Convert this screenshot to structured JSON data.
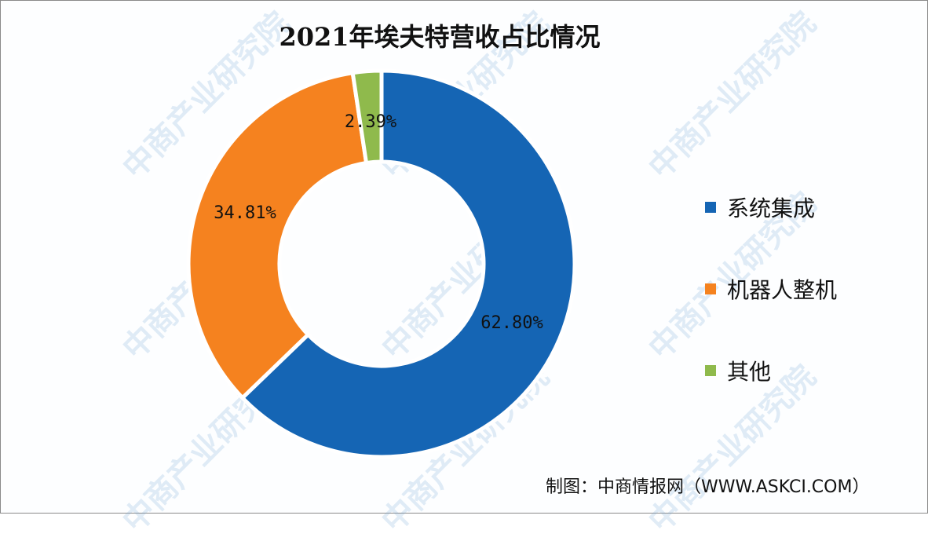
{
  "title": "2021年埃夫特营收占比情况",
  "source": "制图：中商情报网（WWW.ASKCI.COM）",
  "watermark": "中商产业研究院",
  "chart_data": {
    "type": "pie",
    "subtype": "donut",
    "title": "2021年埃夫特营收占比情况",
    "categories": [
      "系统集成",
      "机器人整机",
      "其他"
    ],
    "values": [
      62.8,
      34.81,
      2.39
    ],
    "unit": "%",
    "labels": [
      "62.80%",
      "34.81%",
      "2.39%"
    ],
    "colors": [
      "#1565b4",
      "#f5821f",
      "#8fba4c"
    ],
    "legend_position": "right",
    "start_angle": "12 o'clock, clockwise"
  },
  "legend": [
    {
      "label": "系统集成",
      "color": "#1565b4"
    },
    {
      "label": "机器人整机",
      "color": "#f5821f"
    },
    {
      "label": "其他",
      "color": "#8fba4c"
    }
  ]
}
